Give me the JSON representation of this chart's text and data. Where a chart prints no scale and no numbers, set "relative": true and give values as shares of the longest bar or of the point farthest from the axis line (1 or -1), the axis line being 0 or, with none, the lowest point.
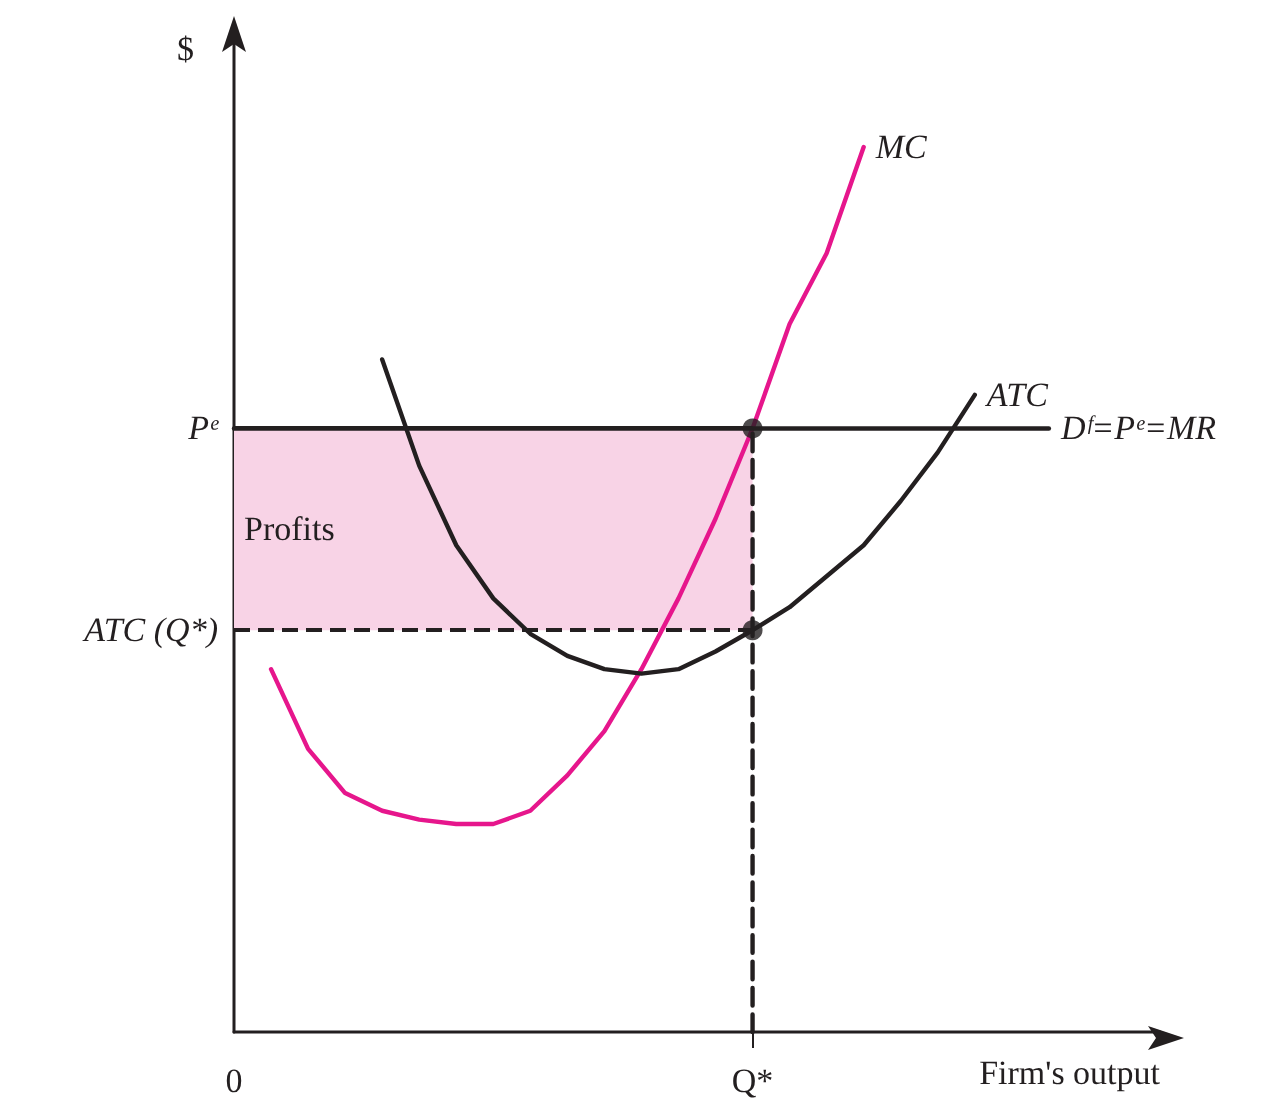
{
  "chart_data": {
    "type": "line",
    "relative": true,
    "xlabel": "Firm's output",
    "ylabel": "$",
    "categories": [
      "0",
      null,
      null,
      null,
      null,
      null,
      null,
      null,
      null,
      null,
      null,
      null,
      null,
      null,
      "Q*",
      null,
      null,
      null,
      null,
      null,
      null,
      null,
      null,
      null,
      null,
      null
    ],
    "marker": "none",
    "legend": false,
    "grid": false,
    "series": [
      {
        "name": "MC",
        "color": "#e6168c",
        "values": [
          null,
          0.41,
          0.32,
          0.27,
          0.25,
          0.24,
          0.235,
          0.235,
          0.25,
          0.29,
          0.34,
          0.41,
          0.49,
          0.58,
          0.682,
          0.8,
          0.88,
          1.0,
          null,
          null,
          null,
          null,
          null,
          null,
          null,
          null
        ]
      },
      {
        "name": "ATC",
        "color": "#231f20",
        "values": [
          null,
          null,
          null,
          null,
          0.76,
          0.64,
          0.55,
          0.49,
          0.45,
          0.425,
          0.41,
          0.405,
          0.41,
          0.43,
          0.454,
          0.48,
          0.515,
          0.55,
          0.6,
          0.655,
          0.72,
          null,
          null,
          null,
          null,
          null
        ]
      },
      {
        "name": "Dᶠ=Pᵉ=MR",
        "color": "#231f20",
        "values": [
          0.682,
          0.682,
          0.682,
          0.682,
          0.682,
          0.682,
          0.682,
          0.682,
          0.682,
          0.682,
          0.682,
          0.682,
          0.682,
          0.682,
          0.682,
          0.682,
          0.682,
          0.682,
          0.682,
          0.682,
          0.682,
          0.682,
          0.682,
          null,
          null,
          null
        ]
      },
      {
        "type": "line",
        "line_style": "dashed",
        "color": "#231f20",
        "x": [
          "Q*",
          "Q*"
        ],
        "values": [
          0,
          0.682
        ]
      },
      {
        "type": "scatter",
        "marker": "circle",
        "color": "#231f20",
        "x": [
          "Q*",
          "Q*"
        ],
        "values": [
          0.682,
          0.454
        ]
      }
    ],
    "ref_lines": [
      {
        "axis": "y",
        "value": 0.454,
        "label": "ATC (Q*)",
        "line_style": "dashed",
        "color": "#231f20"
      },
      {
        "axis": "y",
        "value": 0.682,
        "label": "Pᵉ",
        "line_style": "solid",
        "color": "#231f20"
      }
    ],
    "bands": [
      {
        "axis": "y",
        "from": 0.454,
        "to": 0.682,
        "label": "Profits",
        "color": "#f8d3e6"
      }
    ]
  }
}
